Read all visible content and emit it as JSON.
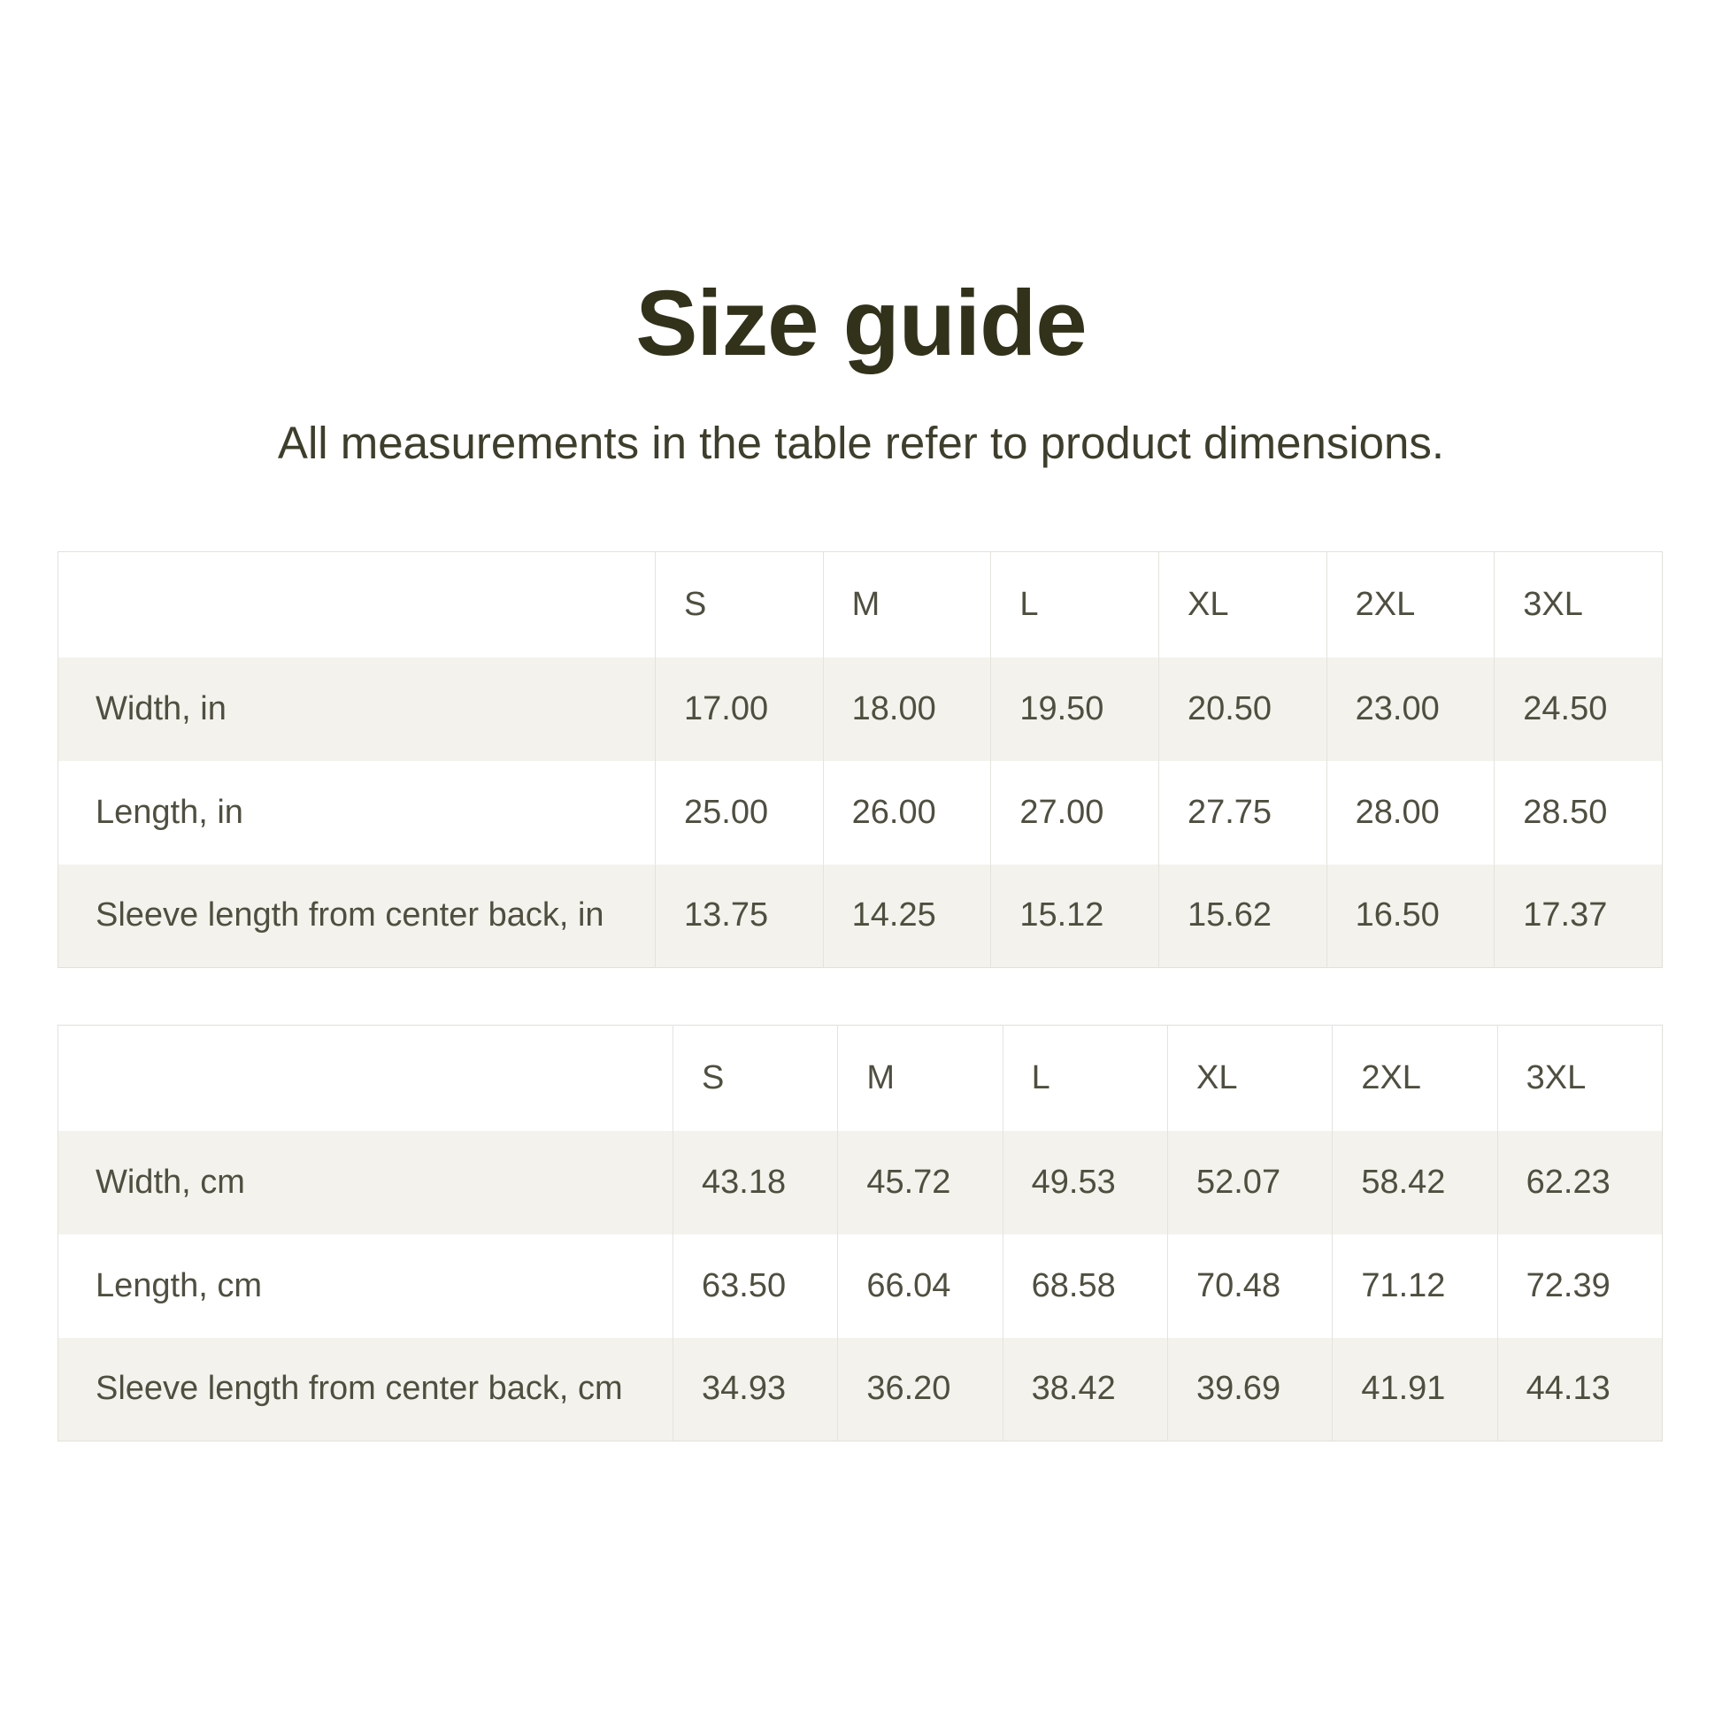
{
  "page": {
    "title": "Size guide",
    "subtitle": "All measurements in the table refer to product dimensions."
  },
  "colors": {
    "page_bg": "#ffffff",
    "title_text": "#32321b",
    "body_text": "#4f4f40",
    "alt_row_bg": "#f3f2ec",
    "table_border": "#e1e1d9"
  },
  "tables": [
    {
      "unit": "inches",
      "columns": [
        "S",
        "M",
        "L",
        "XL",
        "2XL",
        "3XL"
      ],
      "rows": [
        {
          "label": "Width, in",
          "values": [
            "17.00",
            "18.00",
            "19.50",
            "20.50",
            "23.00",
            "24.50"
          ]
        },
        {
          "label": "Length, in",
          "values": [
            "25.00",
            "26.00",
            "27.00",
            "27.75",
            "28.00",
            "28.50"
          ]
        },
        {
          "label": "Sleeve length from center back, in",
          "values": [
            "13.75",
            "14.25",
            "15.12",
            "15.62",
            "16.50",
            "17.37"
          ]
        }
      ]
    },
    {
      "unit": "centimeters",
      "columns": [
        "S",
        "M",
        "L",
        "XL",
        "2XL",
        "3XL"
      ],
      "rows": [
        {
          "label": "Width, cm",
          "values": [
            "43.18",
            "45.72",
            "49.53",
            "52.07",
            "58.42",
            "62.23"
          ]
        },
        {
          "label": "Length, cm",
          "values": [
            "63.50",
            "66.04",
            "68.58",
            "70.48",
            "71.12",
            "72.39"
          ]
        },
        {
          "label": "Sleeve length from center back, cm",
          "values": [
            "34.93",
            "36.20",
            "38.42",
            "39.69",
            "41.91",
            "44.13"
          ]
        }
      ]
    }
  ]
}
